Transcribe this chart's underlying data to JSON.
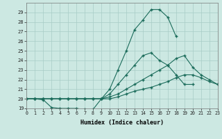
{
  "xlabel": "Humidex (Indice chaleur)",
  "background_color": "#cce8e2",
  "grid_color": "#a8ccc6",
  "line_color": "#1a6b5a",
  "xlim": [
    0,
    23
  ],
  "ylim": [
    19,
    30
  ],
  "yticks": [
    19,
    20,
    21,
    22,
    23,
    24,
    25,
    26,
    27,
    28,
    29
  ],
  "xticks": [
    0,
    1,
    2,
    3,
    4,
    5,
    6,
    7,
    8,
    9,
    10,
    11,
    12,
    13,
    14,
    15,
    16,
    17,
    18,
    19,
    20,
    21,
    22,
    23
  ],
  "lines": [
    {
      "x": [
        0,
        1,
        2,
        3,
        4,
        5,
        6,
        7,
        8,
        9,
        10,
        11,
        12,
        13,
        14,
        15,
        16,
        17,
        18
      ],
      "y": [
        20.0,
        20.0,
        19.9,
        19.1,
        19.0,
        19.0,
        19.0,
        18.9,
        18.9,
        20.0,
        21.0,
        23.0,
        25.0,
        27.2,
        28.2,
        29.3,
        29.3,
        28.5,
        26.5
      ]
    },
    {
      "x": [
        0,
        1,
        2,
        3,
        4,
        5,
        6,
        7,
        8,
        9,
        10,
        11,
        12,
        13,
        14,
        15,
        16,
        17,
        18,
        19,
        20
      ],
      "y": [
        20.0,
        20.0,
        20.0,
        20.0,
        20.0,
        20.0,
        20.0,
        20.0,
        20.0,
        20.0,
        20.5,
        21.5,
        22.5,
        23.5,
        24.5,
        24.8,
        24.0,
        23.5,
        22.5,
        21.5,
        21.5
      ]
    },
    {
      "x": [
        0,
        1,
        2,
        3,
        4,
        5,
        6,
        7,
        8,
        9,
        10,
        11,
        12,
        13,
        14,
        15,
        16,
        17,
        18,
        19,
        20,
        21,
        22,
        23
      ],
      "y": [
        20.0,
        20.0,
        20.0,
        20.0,
        20.0,
        20.0,
        20.0,
        20.0,
        20.0,
        20.0,
        20.2,
        20.5,
        21.0,
        21.5,
        22.0,
        22.5,
        23.0,
        23.5,
        24.2,
        24.5,
        23.3,
        22.5,
        22.0,
        21.5
      ]
    },
    {
      "x": [
        0,
        1,
        2,
        3,
        4,
        5,
        6,
        7,
        8,
        9,
        10,
        11,
        12,
        13,
        14,
        15,
        16,
        17,
        18,
        19,
        20,
        21,
        22,
        23
      ],
      "y": [
        20.0,
        20.0,
        20.0,
        20.0,
        20.0,
        20.0,
        20.0,
        20.0,
        20.0,
        20.0,
        20.0,
        20.2,
        20.5,
        20.8,
        21.0,
        21.2,
        21.5,
        21.8,
        22.2,
        22.5,
        22.5,
        22.2,
        21.8,
        21.5
      ]
    }
  ]
}
